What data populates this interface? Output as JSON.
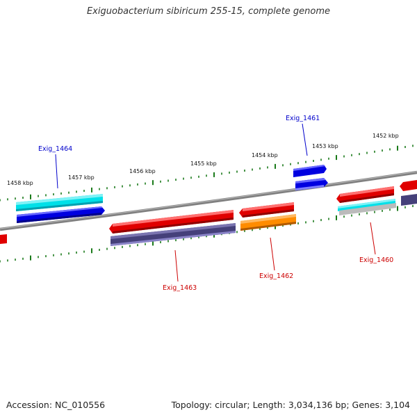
{
  "title": "Exiguobacterium sibiricum 255-15, complete genome",
  "footer": {
    "accession": "Accession: NC_010556",
    "summary": "Topology: circular; Length: 3,034,136 bp; Genes: 3,104"
  },
  "kbp_labels": [
    "1458 kbp",
    "1457 kbp",
    "1456 kbp",
    "1455 kbp",
    "1454 kbp",
    "1453 kbp",
    "1452 kbp"
  ],
  "gene_labels": [
    {
      "text": "Exig_1464",
      "color": "#0000cc"
    },
    {
      "text": "Exig_1461",
      "color": "#0000cc"
    },
    {
      "text": "Exig_1463",
      "color": "#cc0000"
    },
    {
      "text": "Exig_1462",
      "color": "#cc0000"
    },
    {
      "text": "Exig_1460",
      "color": "#cc0000"
    }
  ],
  "colors": {
    "backbone": "#808080",
    "tick": "#1a7a1a",
    "forward_cds": "#0000e0",
    "forward_feature": "#00e0e8",
    "reverse_cds": "#e00000",
    "reverse_feature_purple": "#45407a",
    "reverse_feature_orange": "#ff8c00",
    "reverse_feature_gray": "#bbbbbb"
  }
}
